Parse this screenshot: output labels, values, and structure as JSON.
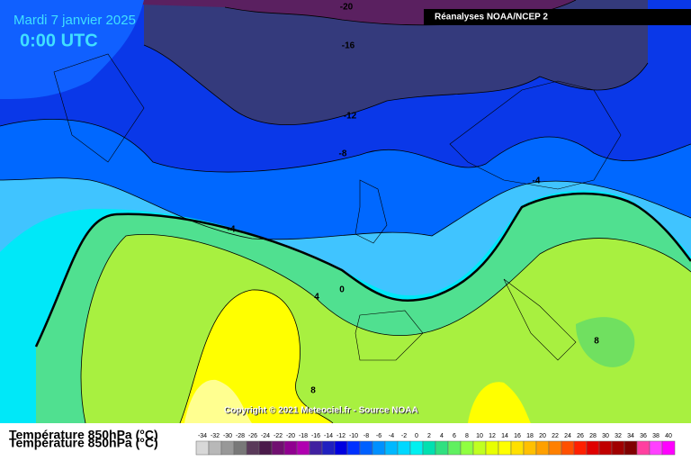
{
  "header": {
    "date": "Mardi 7 janvier 2025",
    "time": "0:00 UTC",
    "source_box": "Réanalyses NOAA/NCEP 2"
  },
  "map": {
    "contour_labels": [
      -20,
      -16,
      -12,
      -8,
      -4,
      -4,
      0,
      4,
      8,
      8
    ],
    "copyright": "Copyright © 2021 Meteociel.fr - Source NOAA"
  },
  "legend": {
    "title": "Température 850hPa (°C)",
    "labels": [
      -34,
      -32,
      -30,
      -28,
      -26,
      -24,
      -22,
      -20,
      -18,
      -16,
      -14,
      -12,
      -10,
      -8,
      -6,
      -4,
      -2,
      0,
      2,
      4,
      6,
      8,
      10,
      12,
      14,
      16,
      18,
      20,
      22,
      24,
      26,
      28,
      30,
      32,
      34,
      36,
      38,
      40
    ],
    "colors": [
      "#d8d8d8",
      "#b8b8b8",
      "#989898",
      "#787878",
      "#5a3a5a",
      "#4a1a4a",
      "#701070",
      "#900090",
      "#b000b0",
      "#4020a0",
      "#2020c0",
      "#0000e0",
      "#0030ff",
      "#0060ff",
      "#0090ff",
      "#00b8ff",
      "#00d8ff",
      "#00f0f0",
      "#00e0b0",
      "#30e080",
      "#60f060",
      "#90ff40",
      "#c0ff20",
      "#e8ff00",
      "#ffff00",
      "#ffe000",
      "#ffc000",
      "#ffa000",
      "#ff8000",
      "#ff5000",
      "#ff2000",
      "#e00000",
      "#c00000",
      "#a00000",
      "#800000",
      "#ff40a0",
      "#ff40ff",
      "#ff00ff"
    ]
  }
}
